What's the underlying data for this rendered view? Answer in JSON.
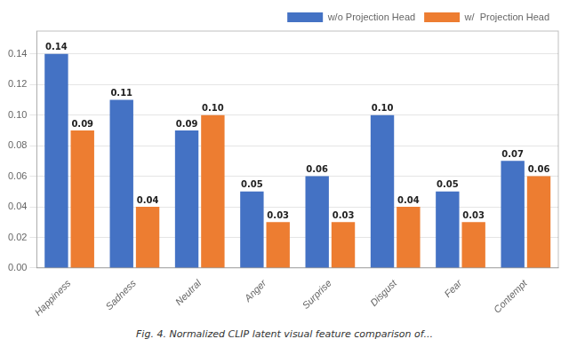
{
  "chart_data": {
    "type": "bar",
    "categories": [
      "Happiness",
      "Sadness",
      "Neutral",
      "Anger",
      "Surprise",
      "Disgust",
      "Fear",
      "Contempt"
    ],
    "series": [
      {
        "name": "w/o Projection Head",
        "color": "#4472C4",
        "values": [
          0.14,
          0.11,
          0.09,
          0.05,
          0.06,
          0.1,
          0.05,
          0.07
        ],
        "value_labels": [
          "0.14",
          "0.11",
          "0.09",
          "0.05",
          "0.06",
          "0.10",
          "0.05",
          "0.07"
        ]
      },
      {
        "name": "w/  Projection Head",
        "color": "#ED7D31",
        "values": [
          0.09,
          0.04,
          0.1,
          0.03,
          0.03,
          0.04,
          0.03,
          0.06
        ],
        "value_labels": [
          "0.09",
          "0.04",
          "0.10",
          "0.03",
          "0.03",
          "0.04",
          "0.03",
          "0.06"
        ]
      }
    ],
    "ylim": [
      0,
      0.155
    ],
    "yticks": [
      {
        "value": 0.0,
        "label": "0.00"
      },
      0.02,
      0.04,
      0.06,
      0.08,
      {
        "value": 0.1,
        "label": "0.10"
      },
      0.12,
      0.14
    ],
    "annotations": [
      "Fig. 4. Normalized CLIP latent visual feature comparison of..."
    ],
    "legend": "upper right",
    "grid": true,
    "data_labels": true
  }
}
